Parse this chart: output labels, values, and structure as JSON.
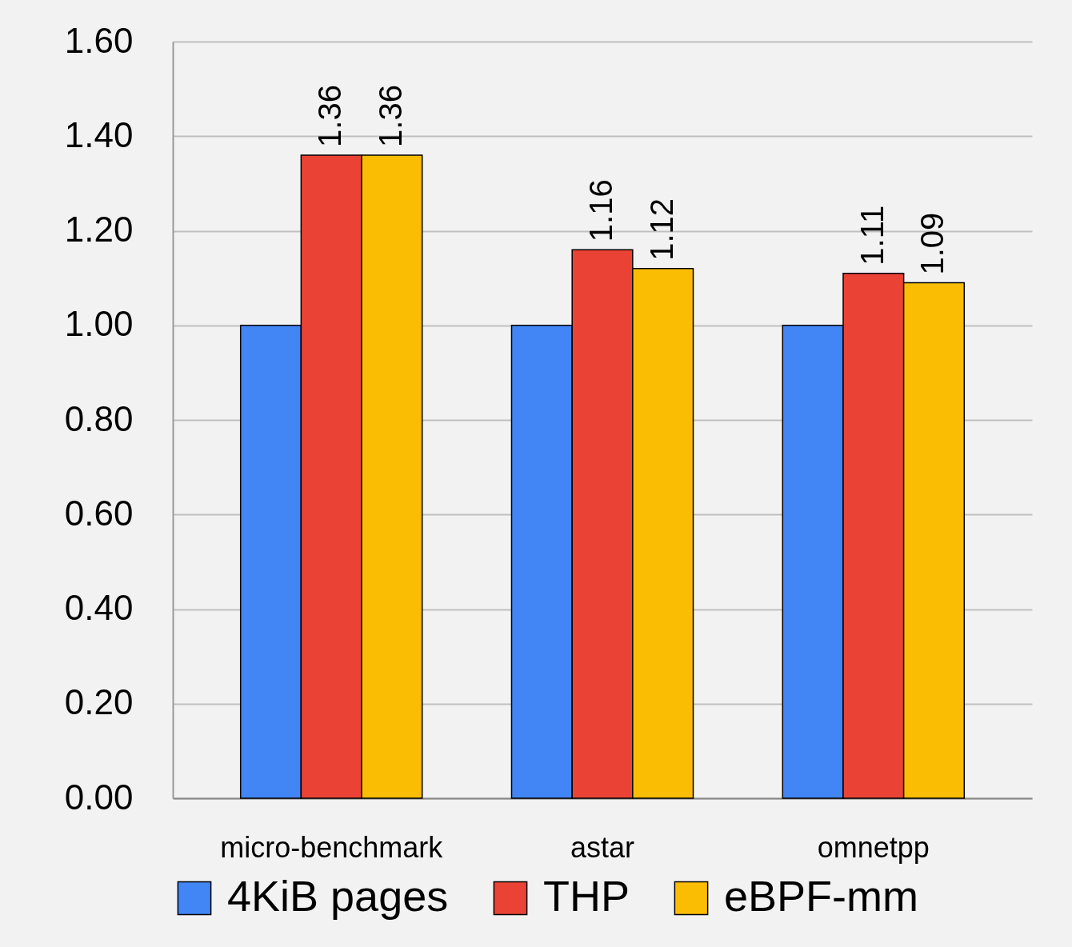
{
  "chart_data": {
    "type": "bar",
    "categories": [
      "micro-benchmark",
      "astar",
      "omnetpp"
    ],
    "series": [
      {
        "name": "4KiB pages",
        "color": "#4285f4",
        "values": [
          1.0,
          1.0,
          1.0
        ]
      },
      {
        "name": "THP",
        "color": "#ea4335",
        "values": [
          1.36,
          1.16,
          1.11
        ],
        "value_labels": [
          "1.36",
          "1.16",
          "1.11"
        ]
      },
      {
        "name": "eBPF-mm",
        "color": "#fbbc04",
        "values": [
          1.36,
          1.12,
          1.09
        ],
        "value_labels": [
          "1.36",
          "1.12",
          "1.09"
        ]
      }
    ],
    "ylim": [
      0,
      1.6
    ],
    "yticks": [
      {
        "value": 0,
        "label": "0.00"
      },
      {
        "value": 0.2,
        "label": "0.20"
      },
      {
        "value": 0.4,
        "label": "0.40"
      },
      {
        "value": 0.6,
        "label": "0.60"
      },
      {
        "value": 0.8,
        "label": "0.80"
      },
      {
        "value": 1.0,
        "label": "1.00"
      },
      {
        "value": 1.2,
        "label": "1.20"
      },
      {
        "value": 1.4,
        "label": "1.40"
      },
      {
        "value": 1.6,
        "label": "1.60"
      }
    ],
    "grid": "y",
    "legend": "bottom"
  }
}
